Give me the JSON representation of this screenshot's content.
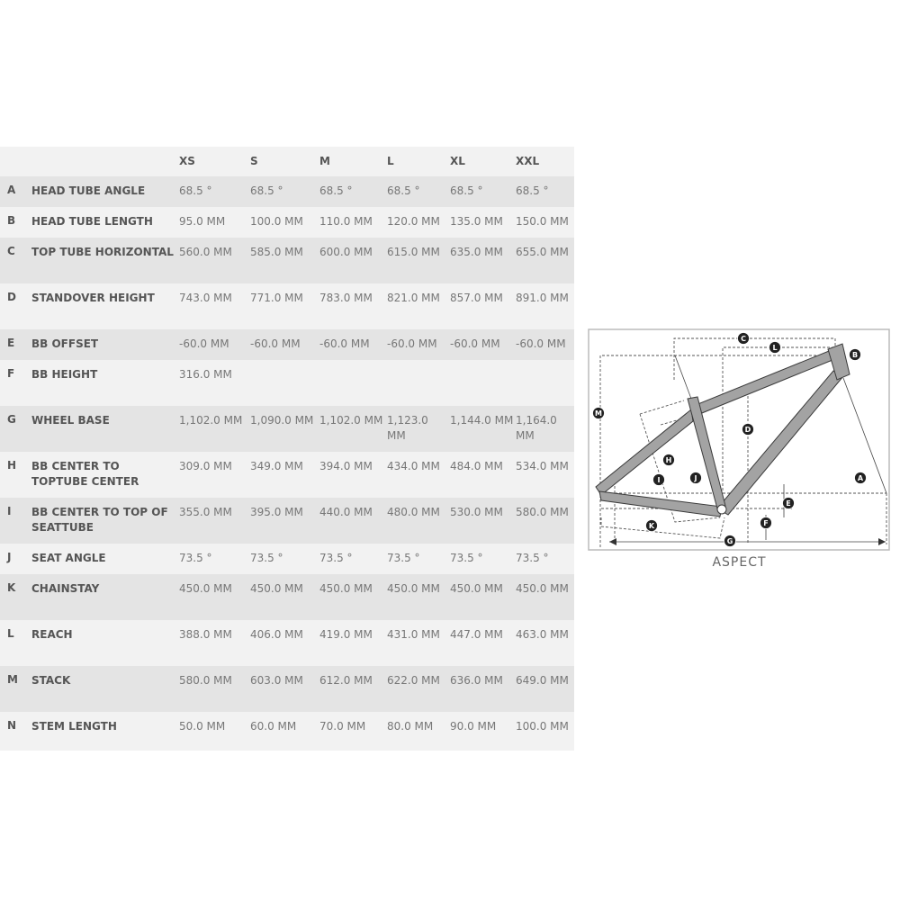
{
  "sizes": [
    "XS",
    "S",
    "M",
    "L",
    "XL",
    "XXL"
  ],
  "rows": [
    {
      "letter": "A",
      "label": "HEAD TUBE ANGLE",
      "values": [
        "68.5 °",
        "68.5 °",
        "68.5 °",
        "68.5 °",
        "68.5 °",
        "68.5 °"
      ]
    },
    {
      "letter": "B",
      "label": "HEAD TUBE LENGTH",
      "values": [
        "95.0 MM",
        "100.0 MM",
        "110.0 MM",
        "120.0 MM",
        "135.0 MM",
        "150.0 MM"
      ]
    },
    {
      "letter": "C",
      "label": "TOP TUBE HORIZONTAL",
      "values": [
        "560.0 MM",
        "585.0 MM",
        "600.0 MM",
        "615.0 MM",
        "635.0 MM",
        "655.0 MM"
      ]
    },
    {
      "letter": "D",
      "label": "STANDOVER HEIGHT",
      "values": [
        "743.0 MM",
        "771.0 MM",
        "783.0 MM",
        "821.0 MM",
        "857.0 MM",
        "891.0 MM"
      ]
    },
    {
      "letter": "E",
      "label": "BB OFFSET",
      "values": [
        "-60.0 MM",
        "-60.0 MM",
        "-60.0 MM",
        "-60.0 MM",
        "-60.0 MM",
        "-60.0 MM"
      ]
    },
    {
      "letter": "F",
      "label": "BB HEIGHT",
      "values": [
        "316.0 MM",
        "",
        "",
        "",
        "",
        ""
      ]
    },
    {
      "letter": "G",
      "label": "WHEEL BASE",
      "values": [
        "1,102.0 MM",
        "1,090.0 MM",
        "1,102.0 MM",
        "1,123.0 MM",
        "1,144.0 MM",
        "1,164.0 MM"
      ]
    },
    {
      "letter": "H",
      "label": "BB CENTER TO TOPTUBE CENTER",
      "values": [
        "309.0 MM",
        "349.0 MM",
        "394.0 MM",
        "434.0 MM",
        "484.0 MM",
        "534.0 MM"
      ]
    },
    {
      "letter": "I",
      "label": "BB CENTER TO TOP OF SEATTUBE",
      "values": [
        "355.0 MM",
        "395.0 MM",
        "440.0 MM",
        "480.0 MM",
        "530.0 MM",
        "580.0 MM"
      ]
    },
    {
      "letter": "J",
      "label": "SEAT ANGLE",
      "values": [
        "73.5 °",
        "73.5 °",
        "73.5 °",
        "73.5 °",
        "73.5 °",
        "73.5 °"
      ]
    },
    {
      "letter": "K",
      "label": "CHAINSTAY",
      "values": [
        "450.0 MM",
        "450.0 MM",
        "450.0 MM",
        "450.0 MM",
        "450.0 MM",
        "450.0 MM"
      ]
    },
    {
      "letter": "L",
      "label": "REACH",
      "values": [
        "388.0 MM",
        "406.0 MM",
        "419.0 MM",
        "431.0 MM",
        "447.0 MM",
        "463.0 MM"
      ]
    },
    {
      "letter": "M",
      "label": "STACK",
      "values": [
        "580.0 MM",
        "603.0 MM",
        "612.0 MM",
        "622.0 MM",
        "636.0 MM",
        "649.0 MM"
      ]
    },
    {
      "letter": "N",
      "label": "STEM LENGTH",
      "values": [
        "50.0 MM",
        "60.0 MM",
        "70.0 MM",
        "80.0 MM",
        "90.0 MM",
        "100.0 MM"
      ]
    }
  ],
  "diagram": {
    "caption": "ASPECT",
    "markers": [
      "A",
      "B",
      "C",
      "D",
      "E",
      "F",
      "G",
      "H",
      "I",
      "J",
      "K",
      "L",
      "M"
    ],
    "frame_color": "#9a9a9a",
    "marker_color": "#222222"
  }
}
